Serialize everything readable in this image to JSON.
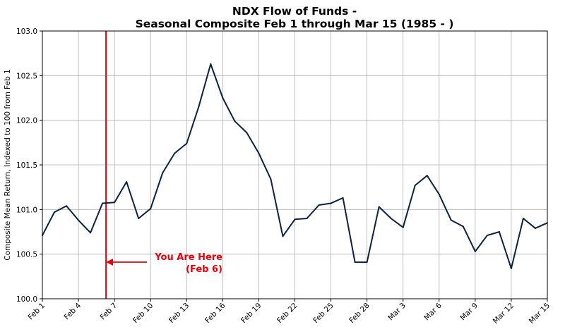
{
  "chart_data": {
    "type": "line",
    "title_line1": "NDX Flow of Funds -",
    "title_line2": "Seasonal Composite Feb 1 through Mar 15 (1985 - )",
    "xlabel": "",
    "ylabel": "Composite Mean Return, Indexed to 100 from Feb 1",
    "ylim": [
      100.0,
      103.0
    ],
    "y_ticks": [
      "100.0",
      "100.5",
      "101.0",
      "101.5",
      "102.0",
      "102.5",
      "103.0"
    ],
    "x_ticks": [
      {
        "i": 0,
        "label": "Feb 1"
      },
      {
        "i": 3,
        "label": "Feb 4"
      },
      {
        "i": 6,
        "label": "Feb 7"
      },
      {
        "i": 9,
        "label": "Feb 10"
      },
      {
        "i": 12,
        "label": "Feb 13"
      },
      {
        "i": 15,
        "label": "Feb 16"
      },
      {
        "i": 18,
        "label": "Feb 19"
      },
      {
        "i": 21,
        "label": "Feb 22"
      },
      {
        "i": 24,
        "label": "Feb 25"
      },
      {
        "i": 27,
        "label": "Feb 28"
      },
      {
        "i": 30,
        "label": "Mar 3"
      },
      {
        "i": 33,
        "label": "Mar 6"
      },
      {
        "i": 36,
        "label": "Mar 9"
      },
      {
        "i": 39,
        "label": "Mar 12"
      },
      {
        "i": 42,
        "label": "Mar 15"
      }
    ],
    "grid": true,
    "line_color": "#0b2140",
    "series": [
      {
        "values": [
          100.71,
          100.97,
          101.04,
          100.88,
          100.74,
          101.07,
          101.08,
          101.31,
          100.9,
          101.01,
          101.41,
          101.63,
          101.74,
          102.15,
          102.63,
          102.25,
          101.99,
          101.86,
          101.63,
          101.34,
          100.7,
          100.89,
          100.9,
          101.05,
          101.07,
          101.13,
          100.41,
          100.41,
          101.03,
          100.9,
          100.8,
          101.27,
          101.38,
          101.17,
          100.88,
          100.81,
          100.53,
          100.71,
          100.75,
          100.34,
          100.9,
          100.79,
          100.85
        ]
      }
    ],
    "marker": {
      "x_index": 5,
      "color": "#e8000b",
      "annotation_line1": "You Are Here",
      "annotation_line2": "(Feb 6)"
    }
  }
}
